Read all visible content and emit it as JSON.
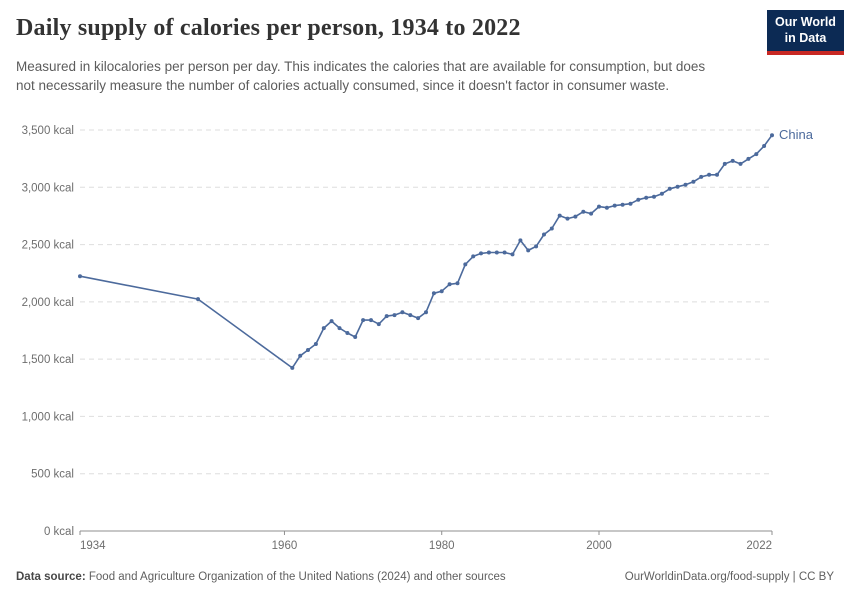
{
  "header": {
    "title": "Daily supply of calories per person, 1934 to 2022",
    "subtitle": "Measured in kilocalories per person per day. This indicates the calories that are available for consumption, but does not necessarily measure the number of calories actually consumed, since it doesn't factor in consumer waste.",
    "logo_line1": "Our World",
    "logo_line2": "in Data",
    "logo_colors": {
      "navy": "#0C2A54",
      "red": "#C82823"
    }
  },
  "chart_data": {
    "type": "line",
    "title": "Daily supply of calories per person, 1934 to 2022",
    "unit": "kcal",
    "xlim": [
      1934,
      2022
    ],
    "ylim": [
      0,
      3500
    ],
    "x_ticks": [
      1934,
      1960,
      1980,
      2000,
      2022
    ],
    "y_ticks": [
      0,
      500,
      1000,
      1500,
      2000,
      2500,
      3000,
      3500
    ],
    "y_tick_suffix": " kcal",
    "grid": "horizontal-dashed",
    "legend_position": "end-of-line-label",
    "line_color": "#4C6A9C",
    "series": [
      {
        "name": "China",
        "points": [
          [
            1934,
            2224
          ],
          [
            1949,
            2024
          ],
          [
            1961,
            1424
          ],
          [
            1962,
            1529
          ],
          [
            1963,
            1580
          ],
          [
            1964,
            1632
          ],
          [
            1965,
            1771
          ],
          [
            1966,
            1832
          ],
          [
            1967,
            1771
          ],
          [
            1968,
            1728
          ],
          [
            1969,
            1693
          ],
          [
            1970,
            1841
          ],
          [
            1971,
            1841
          ],
          [
            1972,
            1806
          ],
          [
            1973,
            1876
          ],
          [
            1974,
            1884
          ],
          [
            1975,
            1910
          ],
          [
            1976,
            1884
          ],
          [
            1977,
            1858
          ],
          [
            1978,
            1910
          ],
          [
            1979,
            2075
          ],
          [
            1980,
            2093
          ],
          [
            1981,
            2153
          ],
          [
            1982,
            2162
          ],
          [
            1983,
            2327
          ],
          [
            1984,
            2397
          ],
          [
            1985,
            2423
          ],
          [
            1986,
            2431
          ],
          [
            1987,
            2431
          ],
          [
            1988,
            2431
          ],
          [
            1989,
            2414
          ],
          [
            1990,
            2536
          ],
          [
            1991,
            2449
          ],
          [
            1992,
            2484
          ],
          [
            1993,
            2588
          ],
          [
            1994,
            2640
          ],
          [
            1995,
            2753
          ],
          [
            1996,
            2727
          ],
          [
            1997,
            2744
          ],
          [
            1998,
            2787
          ],
          [
            1999,
            2770
          ],
          [
            2000,
            2831
          ],
          [
            2001,
            2822
          ],
          [
            2002,
            2840
          ],
          [
            2003,
            2848
          ],
          [
            2004,
            2857
          ],
          [
            2005,
            2892
          ],
          [
            2006,
            2909
          ],
          [
            2007,
            2918
          ],
          [
            2008,
            2944
          ],
          [
            2009,
            2987
          ],
          [
            2010,
            3005
          ],
          [
            2011,
            3022
          ],
          [
            2012,
            3048
          ],
          [
            2013,
            3091
          ],
          [
            2014,
            3109
          ],
          [
            2015,
            3109
          ],
          [
            2016,
            3204
          ],
          [
            2017,
            3230
          ],
          [
            2018,
            3204
          ],
          [
            2019,
            3248
          ],
          [
            2020,
            3290
          ],
          [
            2021,
            3360
          ],
          [
            2022,
            3455
          ]
        ]
      }
    ]
  },
  "footer": {
    "datasource_label": "Data source:",
    "datasource_text": "Food and Agriculture Organization of the United Nations (2024) and other sources",
    "link_text": "OurWorldinData.org/food-supply | CC BY"
  }
}
